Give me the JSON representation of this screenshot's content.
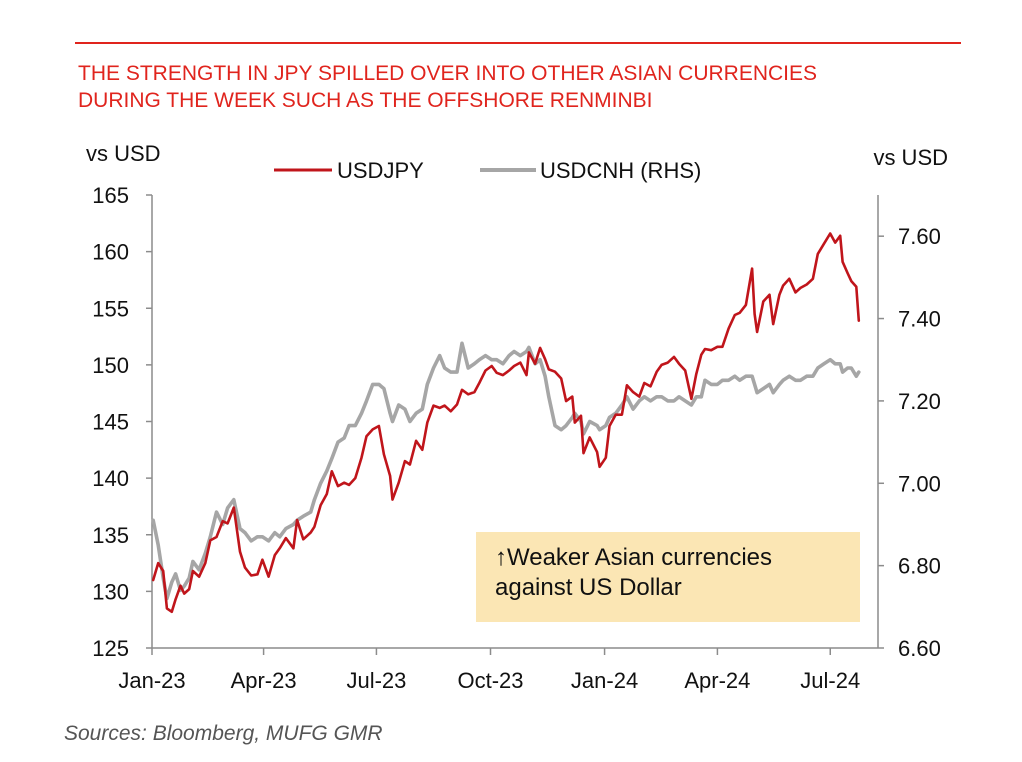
{
  "colors": {
    "accent": "#e0241d",
    "usdjpy": "#c0151b",
    "usdcnh": "#a6a6a6",
    "annotation_bg": "#fbe6b4"
  },
  "title_lines": [
    "THE STRENGTH IN JPY SPILLED OVER INTO OTHER ASIAN CURRENCIES",
    "DURING THE WEEK SUCH AS THE OFFSHORE RENMINBI"
  ],
  "annotation": {
    "line1": "↑Weaker Asian currencies",
    "line2": "against US Dollar"
  },
  "source": "Sources:  Bloomberg, MUFG GMR",
  "chart_data": {
    "type": "line",
    "y_left_label": "vs USD",
    "y_right_label": "vs USD",
    "y_left_range": [
      125,
      165
    ],
    "y_right_range": [
      6.6,
      7.7
    ],
    "y_left_ticks": [
      "125",
      "130",
      "135",
      "140",
      "145",
      "150",
      "155",
      "160",
      "165"
    ],
    "y_right_ticks": [
      "6.60",
      "6.80",
      "7.00",
      "7.20",
      "7.40",
      "7.60"
    ],
    "x_ticks": [
      "Jan-23",
      "Apr-23",
      "Jul-23",
      "Oct-23",
      "Jan-24",
      "Apr-24",
      "Jul-24"
    ],
    "x_range": [
      "2023-01-01",
      "2024-07-25"
    ],
    "legend_position": "top-center",
    "gridlines": false,
    "series": [
      {
        "name": "USDJPY",
        "axis": "left",
        "points": [
          [
            "2023-01-02",
            131
          ],
          [
            "2023-01-06",
            132.5
          ],
          [
            "2023-01-10",
            131.8
          ],
          [
            "2023-01-13",
            128.5
          ],
          [
            "2023-01-17",
            128.2
          ],
          [
            "2023-01-20",
            129.3
          ],
          [
            "2023-01-24",
            130.5
          ],
          [
            "2023-01-27",
            129.8
          ],
          [
            "2023-01-31",
            130.2
          ],
          [
            "2023-02-03",
            131.8
          ],
          [
            "2023-02-08",
            131.3
          ],
          [
            "2023-02-13",
            132.5
          ],
          [
            "2023-02-17",
            134.5
          ],
          [
            "2023-02-22",
            134.8
          ],
          [
            "2023-02-27",
            136.2
          ],
          [
            "2023-03-03",
            136
          ],
          [
            "2023-03-08",
            137.4
          ],
          [
            "2023-03-13",
            133.5
          ],
          [
            "2023-03-17",
            132.1
          ],
          [
            "2023-03-22",
            131.4
          ],
          [
            "2023-03-27",
            131.5
          ],
          [
            "2023-03-31",
            132.8
          ],
          [
            "2023-04-05",
            131.3
          ],
          [
            "2023-04-10",
            133.2
          ],
          [
            "2023-04-14",
            133.8
          ],
          [
            "2023-04-19",
            134.7
          ],
          [
            "2023-04-25",
            133.8
          ],
          [
            "2023-04-28",
            136.3
          ],
          [
            "2023-05-03",
            134.6
          ],
          [
            "2023-05-09",
            135.2
          ],
          [
            "2023-05-12",
            135.7
          ],
          [
            "2023-05-17",
            137.6
          ],
          [
            "2023-05-22",
            138.6
          ],
          [
            "2023-05-26",
            140.6
          ],
          [
            "2023-05-31",
            139.3
          ],
          [
            "2023-06-05",
            139.6
          ],
          [
            "2023-06-09",
            139.4
          ],
          [
            "2023-06-14",
            140
          ],
          [
            "2023-06-19",
            141.8
          ],
          [
            "2023-06-23",
            143.7
          ],
          [
            "2023-06-28",
            144.3
          ],
          [
            "2023-07-03",
            144.6
          ],
          [
            "2023-07-07",
            142.1
          ],
          [
            "2023-07-12",
            140.2
          ],
          [
            "2023-07-14",
            138.1
          ],
          [
            "2023-07-19",
            139.6
          ],
          [
            "2023-07-24",
            141.5
          ],
          [
            "2023-07-28",
            141.2
          ],
          [
            "2023-08-02",
            143.3
          ],
          [
            "2023-08-07",
            142.5
          ],
          [
            "2023-08-11",
            144.9
          ],
          [
            "2023-08-16",
            146.4
          ],
          [
            "2023-08-21",
            146.2
          ],
          [
            "2023-08-25",
            146.4
          ],
          [
            "2023-08-30",
            145.9
          ],
          [
            "2023-09-04",
            146.5
          ],
          [
            "2023-09-08",
            147.8
          ],
          [
            "2023-09-13",
            147.4
          ],
          [
            "2023-09-18",
            147.6
          ],
          [
            "2023-09-22",
            148.4
          ],
          [
            "2023-09-27",
            149.5
          ],
          [
            "2023-10-02",
            149.9
          ],
          [
            "2023-10-06",
            149.3
          ],
          [
            "2023-10-11",
            149.1
          ],
          [
            "2023-10-16",
            149.5
          ],
          [
            "2023-10-20",
            149.9
          ],
          [
            "2023-10-25",
            150.2
          ],
          [
            "2023-10-30",
            149.1
          ],
          [
            "2023-11-01",
            151.1
          ],
          [
            "2023-11-06",
            150.1
          ],
          [
            "2023-11-10",
            151.5
          ],
          [
            "2023-11-14",
            150.5
          ],
          [
            "2023-11-17",
            149.6
          ],
          [
            "2023-11-22",
            149.4
          ],
          [
            "2023-11-27",
            148.8
          ],
          [
            "2023-12-01",
            146.8
          ],
          [
            "2023-12-06",
            147.2
          ],
          [
            "2023-12-08",
            144.9
          ],
          [
            "2023-12-13",
            145.5
          ],
          [
            "2023-12-15",
            142.2
          ],
          [
            "2023-12-20",
            143.6
          ],
          [
            "2023-12-26",
            142.3
          ],
          [
            "2023-12-28",
            141
          ],
          [
            "2024-01-02",
            141.8
          ],
          [
            "2024-01-05",
            144.6
          ],
          [
            "2024-01-10",
            145.6
          ],
          [
            "2024-01-15",
            145.6
          ],
          [
            "2024-01-19",
            148.2
          ],
          [
            "2024-01-24",
            147.6
          ],
          [
            "2024-01-29",
            147.2
          ],
          [
            "2024-02-02",
            148.4
          ],
          [
            "2024-02-07",
            148.1
          ],
          [
            "2024-02-12",
            149.4
          ],
          [
            "2024-02-16",
            150
          ],
          [
            "2024-02-21",
            150.2
          ],
          [
            "2024-02-26",
            150.7
          ],
          [
            "2024-03-01",
            150.1
          ],
          [
            "2024-03-06",
            149.5
          ],
          [
            "2024-03-11",
            147
          ],
          [
            "2024-03-15",
            149.2
          ],
          [
            "2024-03-19",
            150.9
          ],
          [
            "2024-03-22",
            151.4
          ],
          [
            "2024-03-27",
            151.3
          ],
          [
            "2024-04-01",
            151.6
          ],
          [
            "2024-04-05",
            151.6
          ],
          [
            "2024-04-10",
            153.2
          ],
          [
            "2024-04-15",
            154.4
          ],
          [
            "2024-04-19",
            154.6
          ],
          [
            "2024-04-24",
            155.3
          ],
          [
            "2024-04-29",
            158.5
          ],
          [
            "2024-05-01",
            154.5
          ],
          [
            "2024-05-03",
            152.9
          ],
          [
            "2024-05-08",
            155.6
          ],
          [
            "2024-05-13",
            156.2
          ],
          [
            "2024-05-16",
            153.6
          ],
          [
            "2024-05-21",
            156.2
          ],
          [
            "2024-05-24",
            157
          ],
          [
            "2024-05-29",
            157.6
          ],
          [
            "2024-06-03",
            156.4
          ],
          [
            "2024-06-07",
            156.8
          ],
          [
            "2024-06-12",
            157.1
          ],
          [
            "2024-06-17",
            157.6
          ],
          [
            "2024-06-21",
            159.8
          ],
          [
            "2024-06-26",
            160.7
          ],
          [
            "2024-07-01",
            161.6
          ],
          [
            "2024-07-05",
            160.8
          ],
          [
            "2024-07-09",
            161.4
          ],
          [
            "2024-07-11",
            159.1
          ],
          [
            "2024-07-15",
            158.1
          ],
          [
            "2024-07-18",
            157.4
          ],
          [
            "2024-07-22",
            156.9
          ],
          [
            "2024-07-24",
            153.9
          ]
        ]
      },
      {
        "name": "USDCNH (RHS)",
        "axis": "right",
        "points": [
          [
            "2023-01-02",
            6.91
          ],
          [
            "2023-01-06",
            6.85
          ],
          [
            "2023-01-10",
            6.77
          ],
          [
            "2023-01-13",
            6.72
          ],
          [
            "2023-01-17",
            6.76
          ],
          [
            "2023-01-20",
            6.78
          ],
          [
            "2023-01-24",
            6.74
          ],
          [
            "2023-01-27",
            6.75
          ],
          [
            "2023-01-31",
            6.77
          ],
          [
            "2023-02-03",
            6.81
          ],
          [
            "2023-02-08",
            6.79
          ],
          [
            "2023-02-13",
            6.83
          ],
          [
            "2023-02-17",
            6.87
          ],
          [
            "2023-02-22",
            6.93
          ],
          [
            "2023-02-27",
            6.9
          ],
          [
            "2023-03-03",
            6.94
          ],
          [
            "2023-03-08",
            6.96
          ],
          [
            "2023-03-13",
            6.89
          ],
          [
            "2023-03-17",
            6.88
          ],
          [
            "2023-03-22",
            6.86
          ],
          [
            "2023-03-27",
            6.87
          ],
          [
            "2023-03-31",
            6.87
          ],
          [
            "2023-04-05",
            6.86
          ],
          [
            "2023-04-10",
            6.88
          ],
          [
            "2023-04-14",
            6.87
          ],
          [
            "2023-04-19",
            6.89
          ],
          [
            "2023-04-25",
            6.9
          ],
          [
            "2023-04-28",
            6.91
          ],
          [
            "2023-05-03",
            6.92
          ],
          [
            "2023-05-09",
            6.93
          ],
          [
            "2023-05-12",
            6.96
          ],
          [
            "2023-05-17",
            7
          ],
          [
            "2023-05-22",
            7.03
          ],
          [
            "2023-05-26",
            7.06
          ],
          [
            "2023-05-31",
            7.1
          ],
          [
            "2023-06-05",
            7.11
          ],
          [
            "2023-06-09",
            7.14
          ],
          [
            "2023-06-14",
            7.14
          ],
          [
            "2023-06-19",
            7.17
          ],
          [
            "2023-06-23",
            7.2
          ],
          [
            "2023-06-28",
            7.24
          ],
          [
            "2023-07-03",
            7.24
          ],
          [
            "2023-07-07",
            7.23
          ],
          [
            "2023-07-12",
            7.17
          ],
          [
            "2023-07-14",
            7.15
          ],
          [
            "2023-07-19",
            7.19
          ],
          [
            "2023-07-24",
            7.18
          ],
          [
            "2023-07-28",
            7.15
          ],
          [
            "2023-08-02",
            7.17
          ],
          [
            "2023-08-07",
            7.18
          ],
          [
            "2023-08-11",
            7.24
          ],
          [
            "2023-08-16",
            7.28
          ],
          [
            "2023-08-21",
            7.31
          ],
          [
            "2023-08-25",
            7.28
          ],
          [
            "2023-08-30",
            7.27
          ],
          [
            "2023-09-04",
            7.27
          ],
          [
            "2023-09-08",
            7.34
          ],
          [
            "2023-09-13",
            7.28
          ],
          [
            "2023-09-18",
            7.29
          ],
          [
            "2023-09-22",
            7.3
          ],
          [
            "2023-09-27",
            7.31
          ],
          [
            "2023-10-02",
            7.3
          ],
          [
            "2023-10-06",
            7.3
          ],
          [
            "2023-10-11",
            7.29
          ],
          [
            "2023-10-16",
            7.31
          ],
          [
            "2023-10-20",
            7.32
          ],
          [
            "2023-10-25",
            7.31
          ],
          [
            "2023-10-30",
            7.32
          ],
          [
            "2023-11-01",
            7.33
          ],
          [
            "2023-11-06",
            7.29
          ],
          [
            "2023-11-10",
            7.3
          ],
          [
            "2023-11-14",
            7.26
          ],
          [
            "2023-11-17",
            7.21
          ],
          [
            "2023-11-22",
            7.14
          ],
          [
            "2023-11-27",
            7.13
          ],
          [
            "2023-12-01",
            7.14
          ],
          [
            "2023-12-06",
            7.16
          ],
          [
            "2023-12-08",
            7.17
          ],
          [
            "2023-12-13",
            7.15
          ],
          [
            "2023-12-15",
            7.12
          ],
          [
            "2023-12-20",
            7.15
          ],
          [
            "2023-12-26",
            7.14
          ],
          [
            "2023-12-28",
            7.13
          ],
          [
            "2024-01-02",
            7.14
          ],
          [
            "2024-01-05",
            7.16
          ],
          [
            "2024-01-10",
            7.17
          ],
          [
            "2024-01-15",
            7.19
          ],
          [
            "2024-01-19",
            7.21
          ],
          [
            "2024-01-24",
            7.18
          ],
          [
            "2024-01-29",
            7.2
          ],
          [
            "2024-02-02",
            7.21
          ],
          [
            "2024-02-07",
            7.2
          ],
          [
            "2024-02-12",
            7.21
          ],
          [
            "2024-02-16",
            7.21
          ],
          [
            "2024-02-21",
            7.2
          ],
          [
            "2024-02-26",
            7.2
          ],
          [
            "2024-03-01",
            7.21
          ],
          [
            "2024-03-06",
            7.2
          ],
          [
            "2024-03-11",
            7.19
          ],
          [
            "2024-03-15",
            7.21
          ],
          [
            "2024-03-19",
            7.21
          ],
          [
            "2024-03-22",
            7.25
          ],
          [
            "2024-03-27",
            7.24
          ],
          [
            "2024-04-01",
            7.24
          ],
          [
            "2024-04-05",
            7.25
          ],
          [
            "2024-04-10",
            7.25
          ],
          [
            "2024-04-15",
            7.26
          ],
          [
            "2024-04-19",
            7.25
          ],
          [
            "2024-04-24",
            7.26
          ],
          [
            "2024-04-29",
            7.26
          ],
          [
            "2024-05-01",
            7.24
          ],
          [
            "2024-05-03",
            7.22
          ],
          [
            "2024-05-08",
            7.23
          ],
          [
            "2024-05-13",
            7.24
          ],
          [
            "2024-05-16",
            7.22
          ],
          [
            "2024-05-21",
            7.24
          ],
          [
            "2024-05-24",
            7.25
          ],
          [
            "2024-05-29",
            7.26
          ],
          [
            "2024-06-03",
            7.25
          ],
          [
            "2024-06-07",
            7.25
          ],
          [
            "2024-06-12",
            7.26
          ],
          [
            "2024-06-17",
            7.26
          ],
          [
            "2024-06-21",
            7.28
          ],
          [
            "2024-06-26",
            7.29
          ],
          [
            "2024-07-01",
            7.3
          ],
          [
            "2024-07-05",
            7.29
          ],
          [
            "2024-07-09",
            7.29
          ],
          [
            "2024-07-11",
            7.27
          ],
          [
            "2024-07-15",
            7.28
          ],
          [
            "2024-07-18",
            7.28
          ],
          [
            "2024-07-22",
            7.26
          ],
          [
            "2024-07-24",
            7.27
          ]
        ]
      }
    ]
  }
}
